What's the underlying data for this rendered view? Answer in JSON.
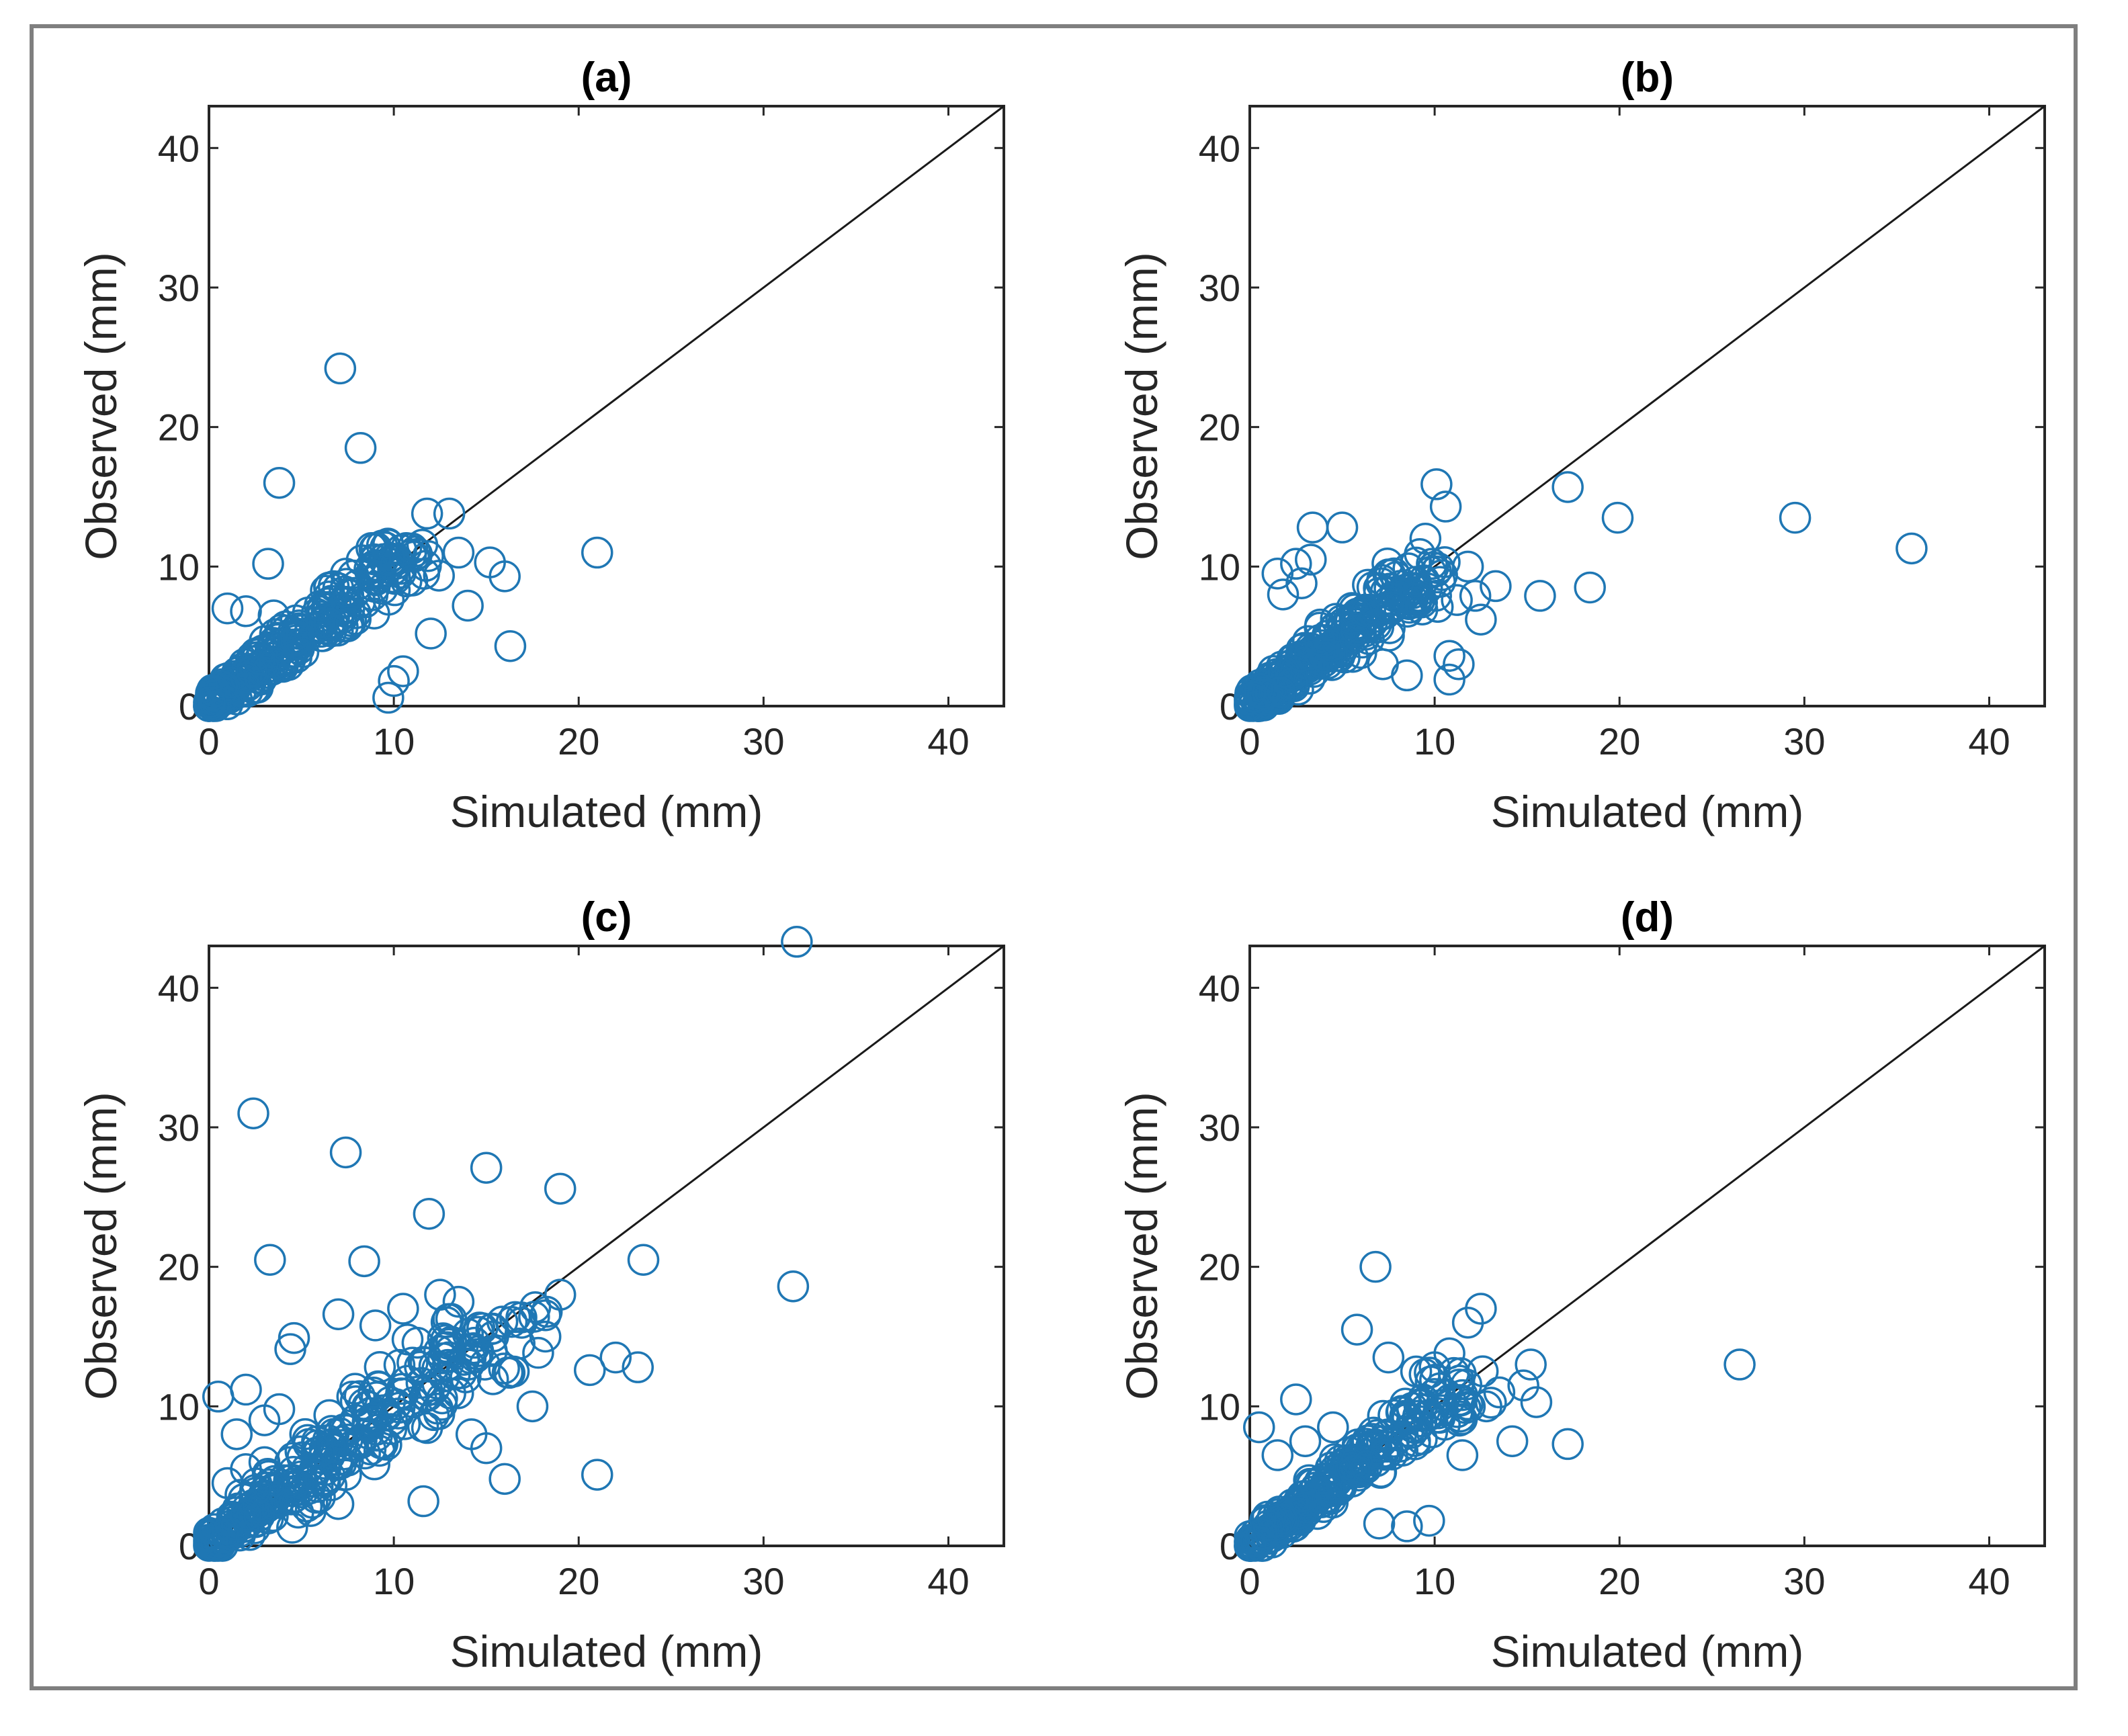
{
  "figure": {
    "panel_labels": [
      "(a)",
      "(b)",
      "(c)",
      "(d)"
    ]
  },
  "chart_data": [
    {
      "type": "scatter",
      "title": "(a)",
      "xlabel": "Simulated (mm)",
      "ylabel": "Observed (mm)",
      "xlim": [
        0,
        43
      ],
      "ylim": [
        0,
        43
      ],
      "xticks": [
        0,
        10,
        20,
        30,
        40
      ],
      "yticks": [
        0,
        10,
        20,
        30,
        40
      ],
      "grid": false,
      "reference_line": "1:1",
      "marker_color": "#1f77b4",
      "cluster": {
        "max": 11,
        "spread": 1.2,
        "count": 260
      },
      "points": [
        [
          7.1,
          24.2
        ],
        [
          8.2,
          18.5
        ],
        [
          3.8,
          16.0
        ],
        [
          11.8,
          13.8
        ],
        [
          13.0,
          13.8
        ],
        [
          10.4,
          11.2
        ],
        [
          11.0,
          11.3
        ],
        [
          13.5,
          11.0
        ],
        [
          15.2,
          10.3
        ],
        [
          16.0,
          9.3
        ],
        [
          21.0,
          11.0
        ],
        [
          14.0,
          7.2
        ],
        [
          16.3,
          4.3
        ],
        [
          12.0,
          5.2
        ],
        [
          10.5,
          2.5
        ],
        [
          10.0,
          1.8
        ],
        [
          9.7,
          0.6
        ],
        [
          3.2,
          10.2
        ],
        [
          2.0,
          6.8
        ],
        [
          1.0,
          7.0
        ],
        [
          3.5,
          6.5
        ],
        [
          6.5,
          8.5
        ],
        [
          9.0,
          10.5
        ],
        [
          11.0,
          9.0
        ]
      ]
    },
    {
      "type": "scatter",
      "title": "(b)",
      "xlabel": "Simulated (mm)",
      "ylabel": "Observed (mm)",
      "xlim": [
        0,
        43
      ],
      "ylim": [
        0,
        43
      ],
      "xticks": [
        0,
        10,
        20,
        30,
        40
      ],
      "yticks": [
        0,
        10,
        20,
        30,
        40
      ],
      "grid": false,
      "reference_line": "1:1",
      "marker_color": "#1f77b4",
      "cluster": {
        "max": 9.5,
        "spread": 1.3,
        "count": 260
      },
      "points": [
        [
          10.1,
          15.9
        ],
        [
          10.6,
          14.3
        ],
        [
          17.2,
          15.7
        ],
        [
          19.9,
          13.5
        ],
        [
          29.5,
          13.5
        ],
        [
          35.8,
          11.3
        ],
        [
          15.7,
          7.9
        ],
        [
          18.4,
          8.5
        ],
        [
          13.3,
          8.6
        ],
        [
          12.2,
          7.9
        ],
        [
          11.2,
          7.6
        ],
        [
          11.8,
          10.0
        ],
        [
          12.5,
          6.2
        ],
        [
          10.8,
          3.6
        ],
        [
          11.3,
          3.0
        ],
        [
          10.8,
          1.9
        ],
        [
          9.5,
          12.0
        ],
        [
          3.4,
          12.8
        ],
        [
          5.0,
          12.8
        ],
        [
          2.5,
          10.2
        ],
        [
          3.3,
          10.5
        ],
        [
          1.8,
          8.0
        ],
        [
          1.5,
          9.5
        ],
        [
          2.8,
          8.8
        ],
        [
          7.2,
          3.0
        ],
        [
          8.5,
          2.2
        ]
      ]
    },
    {
      "type": "scatter",
      "title": "(c)",
      "xlabel": "Simulated (mm)",
      "ylabel": "Observed (mm)",
      "xlim": [
        0,
        43
      ],
      "ylim": [
        0,
        43
      ],
      "xticks": [
        0,
        10,
        20,
        30,
        40
      ],
      "yticks": [
        0,
        10,
        20,
        30,
        40
      ],
      "grid": false,
      "reference_line": "1:1",
      "marker_color": "#1f77b4",
      "cluster": {
        "max": 16,
        "spread": 2.0,
        "count": 280
      },
      "points": [
        [
          31.8,
          43.3
        ],
        [
          2.4,
          31.0
        ],
        [
          7.4,
          28.2
        ],
        [
          15.0,
          27.1
        ],
        [
          11.9,
          23.8
        ],
        [
          19.0,
          25.6
        ],
        [
          23.5,
          20.5
        ],
        [
          31.6,
          18.6
        ],
        [
          3.3,
          20.5
        ],
        [
          8.4,
          20.4
        ],
        [
          20.6,
          12.6
        ],
        [
          23.2,
          12.8
        ],
        [
          22.0,
          13.5
        ],
        [
          18.2,
          15.0
        ],
        [
          19.0,
          18.0
        ],
        [
          16.8,
          14.5
        ],
        [
          17.5,
          10.0
        ],
        [
          16.0,
          4.8
        ],
        [
          21.0,
          5.1
        ],
        [
          15.0,
          7.0
        ],
        [
          14.2,
          8.0
        ],
        [
          11.6,
          3.2
        ],
        [
          0.5,
          10.7
        ],
        [
          1.5,
          8.0
        ],
        [
          2.0,
          11.2
        ],
        [
          3.0,
          9.0
        ],
        [
          3.8,
          9.8
        ],
        [
          4.4,
          14.1
        ],
        [
          4.6,
          14.9
        ],
        [
          7.0,
          16.6
        ],
        [
          9.0,
          15.8
        ],
        [
          10.5,
          17.0
        ],
        [
          12.5,
          18.0
        ],
        [
          13.5,
          17.5
        ],
        [
          1.0,
          4.5
        ],
        [
          2.5,
          4.0
        ],
        [
          2.0,
          5.5
        ],
        [
          3.0,
          6.0
        ],
        [
          4.5,
          1.3
        ],
        [
          5.5,
          2.5
        ],
        [
          6.0,
          3.5
        ],
        [
          7.0,
          3.0
        ],
        [
          0.2,
          0.4
        ],
        [
          0.4,
          0.2
        ],
        [
          0.6,
          0.3
        ],
        [
          0.8,
          0.6
        ],
        [
          1.0,
          1.0
        ],
        [
          1.2,
          0.8
        ],
        [
          1.5,
          1.5
        ],
        [
          0.3,
          1.2
        ],
        [
          2.0,
          2.2
        ]
      ]
    },
    {
      "type": "scatter",
      "title": "(d)",
      "xlabel": "Simulated (mm)",
      "ylabel": "Observed (mm)",
      "xlim": [
        0,
        43
      ],
      "ylim": [
        0,
        43
      ],
      "xticks": [
        0,
        10,
        20,
        30,
        40
      ],
      "yticks": [
        0,
        10,
        20,
        30,
        40
      ],
      "grid": false,
      "reference_line": "1:1",
      "marker_color": "#1f77b4",
      "cluster": {
        "max": 11.5,
        "spread": 1.2,
        "count": 260
      },
      "points": [
        [
          6.8,
          20.0
        ],
        [
          5.8,
          15.5
        ],
        [
          12.5,
          17.0
        ],
        [
          11.8,
          16.0
        ],
        [
          10.8,
          13.8
        ],
        [
          13.5,
          11.0
        ],
        [
          15.2,
          13.0
        ],
        [
          14.8,
          11.5
        ],
        [
          15.5,
          10.3
        ],
        [
          14.2,
          7.5
        ],
        [
          17.2,
          7.3
        ],
        [
          26.5,
          13.0
        ],
        [
          12.8,
          10.0
        ],
        [
          11.5,
          6.5
        ],
        [
          9.7,
          1.8
        ],
        [
          8.5,
          1.4
        ],
        [
          7.0,
          1.6
        ],
        [
          2.5,
          10.5
        ],
        [
          0.5,
          8.5
        ],
        [
          1.5,
          6.5
        ],
        [
          3.0,
          7.5
        ],
        [
          4.5,
          8.5
        ],
        [
          7.5,
          13.5
        ],
        [
          9.0,
          12.5
        ],
        [
          10.0,
          12.8
        ]
      ]
    }
  ]
}
